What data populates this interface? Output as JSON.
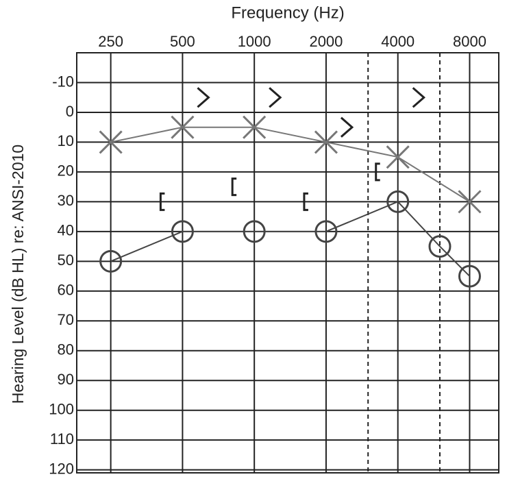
{
  "chart_data": {
    "type": "line",
    "title": "Frequency (Hz)",
    "y_label": "Hearing Level (dB HL) re: ANSI-2010",
    "x_scale": "log",
    "xlim": [
      180,
      10600
    ],
    "xticks": [
      250,
      500,
      1000,
      2000,
      4000,
      8000
    ],
    "x_dashed_lines": [
      3000,
      6000
    ],
    "ylim": [
      -20,
      121
    ],
    "y_inverted": true,
    "yticks": [
      -10,
      0,
      10,
      20,
      30,
      40,
      50,
      60,
      70,
      80,
      90,
      100,
      110,
      120
    ],
    "grid": true,
    "series": [
      {
        "marker": "o",
        "color": "#444444",
        "connected": true,
        "x": [
          250,
          500,
          1000,
          2000,
          4000,
          6000,
          8000
        ],
        "values": [
          50,
          40,
          40,
          40,
          30,
          45,
          55
        ]
      },
      {
        "marker": "x",
        "color": "#777777",
        "connected": true,
        "x": [
          250,
          500,
          1000,
          2000,
          4000,
          8000
        ],
        "values": [
          10,
          5,
          5,
          10,
          15,
          30
        ]
      },
      {
        "marker": "[",
        "color": "#222222",
        "connected": false,
        "x": [
          500,
          1000,
          2000,
          4000
        ],
        "values": [
          30,
          25,
          30,
          20
        ]
      },
      {
        "marker": ">",
        "color": "#222222",
        "connected": false,
        "x": [
          500,
          1000,
          2000,
          4000
        ],
        "values": [
          -5,
          -5,
          5,
          -5
        ]
      }
    ]
  }
}
